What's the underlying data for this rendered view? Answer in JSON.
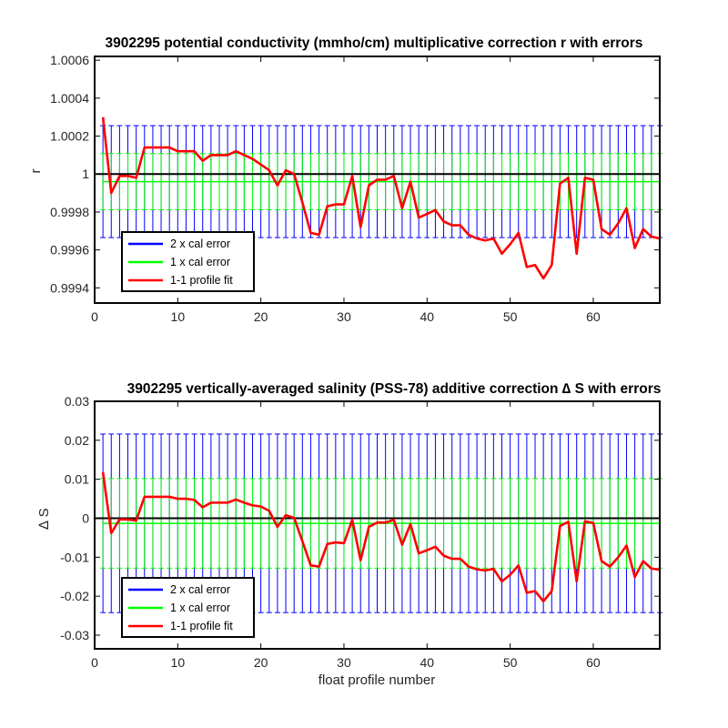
{
  "figure": {
    "xlabel_shared": "float profile number"
  },
  "chart_data": [
    {
      "type": "line",
      "title": "3902295 potential conductivity (mmho/cm) multiplicative correction r with errors",
      "xlabel": "",
      "ylabel": "r",
      "xlim": [
        0,
        68
      ],
      "ylim": [
        0.99932,
        1.00062
      ],
      "xticks": [
        0,
        10,
        20,
        30,
        40,
        50,
        60
      ],
      "yticks": [
        0.9994,
        0.9996,
        0.9998,
        1,
        1.0002,
        1.0004,
        1.0006
      ],
      "ytick_labels": [
        "0.9994",
        "0.9996",
        "0.9998",
        "1",
        "1.0002",
        "1.0004",
        "1.0006"
      ],
      "reference_line": 1,
      "error_center": 0.99996,
      "err2": 0.000295,
      "err1": 0.000148,
      "x": [
        1,
        2,
        3,
        4,
        5,
        6,
        7,
        8,
        9,
        10,
        11,
        12,
        13,
        14,
        15,
        16,
        17,
        18,
        19,
        20,
        21,
        22,
        23,
        24,
        25,
        26,
        27,
        28,
        29,
        30,
        31,
        32,
        33,
        34,
        35,
        36,
        37,
        38,
        39,
        40,
        41,
        42,
        43,
        44,
        45,
        46,
        47,
        48,
        49,
        50,
        51,
        52,
        53,
        54,
        55,
        56,
        57,
        58,
        59,
        60,
        61,
        62,
        63,
        64,
        65,
        66,
        67,
        68
      ],
      "fit": [
        1.0003,
        0.9999,
        0.99999,
        0.99999,
        0.99998,
        1.00014,
        1.00014,
        1.00014,
        1.00014,
        1.00012,
        1.00012,
        1.00012,
        1.00007,
        1.0001,
        1.0001,
        1.0001,
        1.00012,
        1.0001,
        1.00008,
        1.00005,
        1.00002,
        0.99994,
        1.00002,
        1.0,
        0.99985,
        0.99969,
        0.99968,
        0.99983,
        0.99984,
        0.99984,
        0.99999,
        0.99972,
        0.99994,
        0.99997,
        0.99997,
        0.99999,
        0.99982,
        0.99996,
        0.99977,
        0.99979,
        0.99981,
        0.99975,
        0.99973,
        0.99973,
        0.99968,
        0.99966,
        0.99965,
        0.99966,
        0.99958,
        0.99963,
        0.99969,
        0.99951,
        0.99952,
        0.99945,
        0.99952,
        0.99995,
        0.99998,
        0.99958,
        0.99998,
        0.99997,
        0.99971,
        0.99968,
        0.99974,
        0.99982,
        0.99961,
        0.99971,
        0.99967,
        0.99966
      ],
      "legend": [
        "2 x cal error",
        "1 x cal error",
        "1-1 profile fit"
      ],
      "colors": {
        "err2": "#0000ff",
        "err1": "#00ff00",
        "fit": "#ff0000",
        "ref": "#000000"
      }
    },
    {
      "type": "line",
      "title": "3902295 vertically-averaged salinity (PSS-78) additive correction ∆ S with errors",
      "xlabel": "float profile number",
      "ylabel": "∆ S",
      "xlim": [
        0,
        68
      ],
      "ylim": [
        -0.0335,
        0.03
      ],
      "xticks": [
        0,
        10,
        20,
        30,
        40,
        50,
        60
      ],
      "yticks": [
        -0.03,
        -0.02,
        -0.01,
        0,
        0.01,
        0.02,
        0.03
      ],
      "ytick_labels": [
        "-0.03",
        "-0.02",
        "-0.01",
        "0",
        "0.01",
        "0.02",
        "0.03"
      ],
      "reference_line": 0,
      "error_center": -0.0013,
      "err2": 0.0229,
      "err1": 0.0115,
      "x": [
        1,
        2,
        3,
        4,
        5,
        6,
        7,
        8,
        9,
        10,
        11,
        12,
        13,
        14,
        15,
        16,
        17,
        18,
        19,
        20,
        21,
        22,
        23,
        24,
        25,
        26,
        27,
        28,
        29,
        30,
        31,
        32,
        33,
        34,
        35,
        36,
        37,
        38,
        39,
        40,
        41,
        42,
        43,
        44,
        45,
        46,
        47,
        48,
        49,
        50,
        51,
        52,
        53,
        54,
        55,
        56,
        57,
        58,
        59,
        60,
        61,
        62,
        63,
        64,
        65,
        66,
        67,
        68
      ],
      "fit": [
        0.0118,
        -0.0038,
        -0.0003,
        -0.0003,
        -0.0006,
        0.0055,
        0.0055,
        0.0055,
        0.0055,
        0.005,
        0.005,
        0.0047,
        0.0028,
        0.004,
        0.004,
        0.004,
        0.0048,
        0.004,
        0.0033,
        0.003,
        0.0019,
        -0.0022,
        0.0008,
        0.0001,
        -0.0059,
        -0.0121,
        -0.0124,
        -0.0066,
        -0.0062,
        -0.0064,
        -0.0004,
        -0.0108,
        -0.0022,
        -0.0011,
        -0.0011,
        -0.0004,
        -0.0068,
        -0.0015,
        -0.009,
        -0.0082,
        -0.0073,
        -0.0096,
        -0.0104,
        -0.0104,
        -0.0124,
        -0.0131,
        -0.0134,
        -0.013,
        -0.0162,
        -0.0145,
        -0.0121,
        -0.0191,
        -0.0187,
        -0.0213,
        -0.0187,
        -0.002,
        -0.0009,
        -0.0162,
        -0.0008,
        -0.0012,
        -0.011,
        -0.0124,
        -0.01,
        -0.007,
        -0.0151,
        -0.011,
        -0.0129,
        -0.0132
      ],
      "legend": [
        "2 x cal error",
        "1 x cal error",
        "1-1 profile fit"
      ],
      "colors": {
        "err2": "#0000ff",
        "err1": "#00ff00",
        "fit": "#ff0000",
        "ref": "#000000"
      }
    }
  ]
}
